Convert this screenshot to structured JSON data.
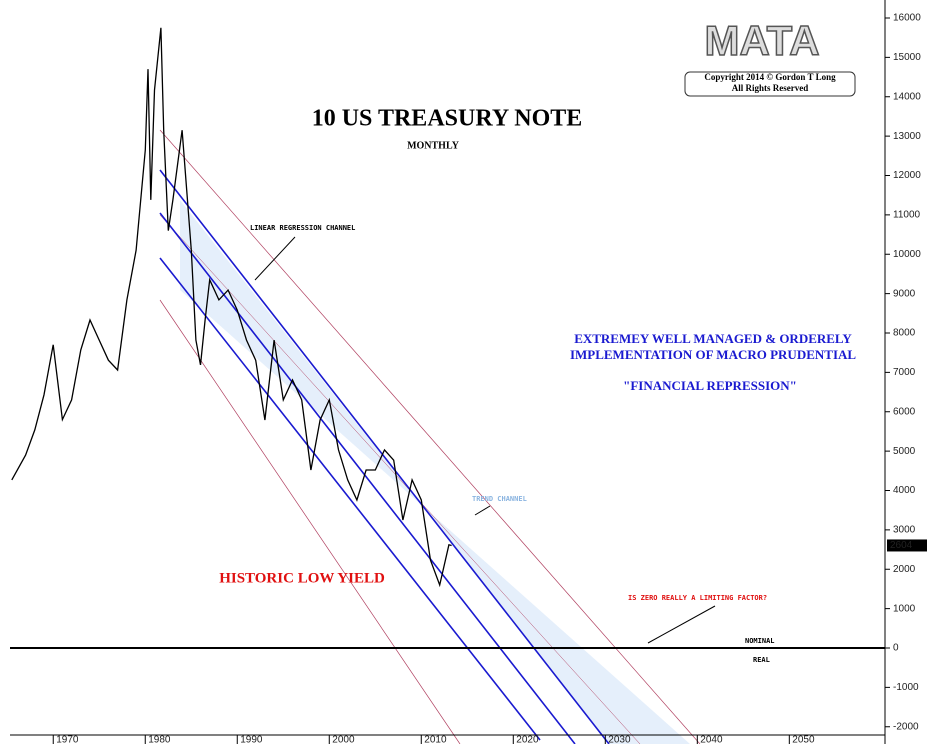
{
  "chart_data": {
    "type": "line",
    "title": "10 US TREASURY NOTE",
    "subtitle": "MONTHLY",
    "logo": "MATA",
    "copyright": [
      "Copyright 2014 © Gordon T Long",
      "All Rights Reserved"
    ],
    "annotations": [
      "LINEAR REGRESSION CHANNEL",
      "EXTREMEY WELL MANAGED & ORDERELY",
      "IMPLEMENTATION OF MACRO PRUDENTIAL",
      "\"FINANCIAL REPRESSION\"",
      "TREND CHANNEL",
      "HISTORIC LOW YIELD",
      "IS ZERO REALLY A LIMITING FACTOR?",
      "NOMINAL",
      "REAL"
    ],
    "last_value": 2604,
    "x": [
      1965.5,
      1967,
      1968,
      1969,
      1970,
      1971,
      1972,
      1973,
      1974,
      1975,
      1976,
      1977,
      1978,
      1979,
      1980,
      1980.3,
      1980.6,
      1981,
      1981.7,
      1982,
      1982.5,
      1983,
      1984,
      1984.5,
      1985,
      1985.5,
      1986,
      1986.5,
      1987,
      1988,
      1989,
      1990,
      1991,
      1992,
      1993,
      1994,
      1995,
      1996,
      1997,
      1998,
      1999,
      2000,
      2001,
      2002,
      2003,
      2004,
      2005,
      2006,
      2007,
      2008,
      2009,
      2010,
      2011,
      2012,
      2013,
      2013.3
    ],
    "series": [
      {
        "name": "10 US TREASURY NOTE",
        "color": "#000000",
        "values": [
          4270,
          4900,
          5540,
          6430,
          7700,
          5800,
          6300,
          7570,
          8330,
          7820,
          7310,
          7060,
          8840,
          10100,
          12650,
          14700,
          11380,
          14170,
          15750,
          13150,
          10600,
          11380,
          13150,
          11630,
          10100,
          7820,
          7190,
          8330,
          9350,
          8840,
          9090,
          8580,
          7820,
          7310,
          5790,
          7820,
          6300,
          6810,
          6300,
          4520,
          5790,
          6300,
          5030,
          4270,
          3760,
          4520,
          4520,
          5030,
          4770,
          3250,
          4270,
          3760,
          2230,
          1600,
          2620,
          2604
        ]
      }
    ],
    "xlim": [
      1965.3,
      2060.4
    ],
    "xticks": [
      1970,
      1980,
      1990,
      2000,
      2010,
      2020,
      2030,
      2040,
      2050
    ],
    "ylim": [
      -2438,
      16457
    ],
    "yticks": [
      16000,
      15000,
      14000,
      13000,
      12000,
      11000,
      10000,
      9000,
      8000,
      7000,
      6000,
      5000,
      4000,
      3000,
      2000,
      1000,
      0,
      -1000,
      -2000
    ]
  }
}
